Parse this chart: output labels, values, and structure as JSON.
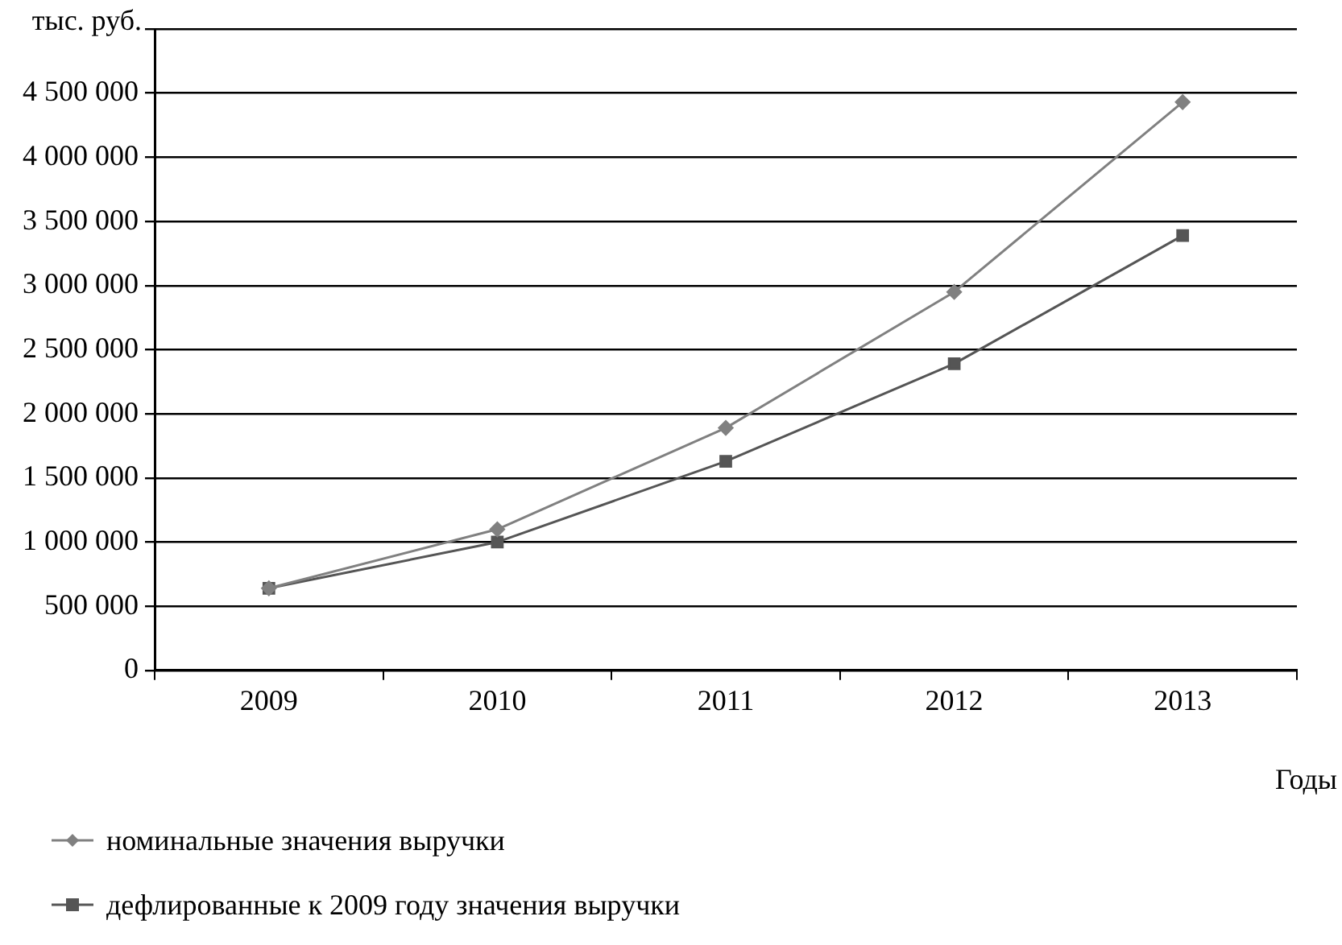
{
  "chart_data": {
    "type": "line",
    "ylabel": "тыс. руб.",
    "xlabel": "Годы",
    "categories": [
      "2009",
      "2010",
      "2011",
      "2012",
      "2013"
    ],
    "series": [
      {
        "name": "номинальные значения выручки",
        "color": "#808080",
        "marker": "diamond",
        "values": [
          640000,
          1100000,
          1890000,
          2950000,
          4430000
        ]
      },
      {
        "name": "дефлированные к 2009 году значения выручки",
        "color": "#555555",
        "marker": "square",
        "values": [
          640000,
          1000000,
          1630000,
          2390000,
          3390000
        ]
      }
    ],
    "ylim": [
      0,
      5000000
    ],
    "yticks": [
      {
        "value": 0,
        "label": "0"
      },
      {
        "value": 500000,
        "label": "500 000"
      },
      {
        "value": 1000000,
        "label": "1 000 000"
      },
      {
        "value": 1500000,
        "label": "1 500 000"
      },
      {
        "value": 2000000,
        "label": "2 000 000"
      },
      {
        "value": 2500000,
        "label": "2 500 000"
      },
      {
        "value": 3000000,
        "label": "3 000 000"
      },
      {
        "value": 3500000,
        "label": "3 500 000"
      },
      {
        "value": 4000000,
        "label": "4 000 000"
      },
      {
        "value": 4500000,
        "label": "4 500 000"
      },
      {
        "value": 5000000,
        "label": null
      }
    ],
    "grid": "y",
    "legend": "bottom",
    "line_style": "solid"
  }
}
